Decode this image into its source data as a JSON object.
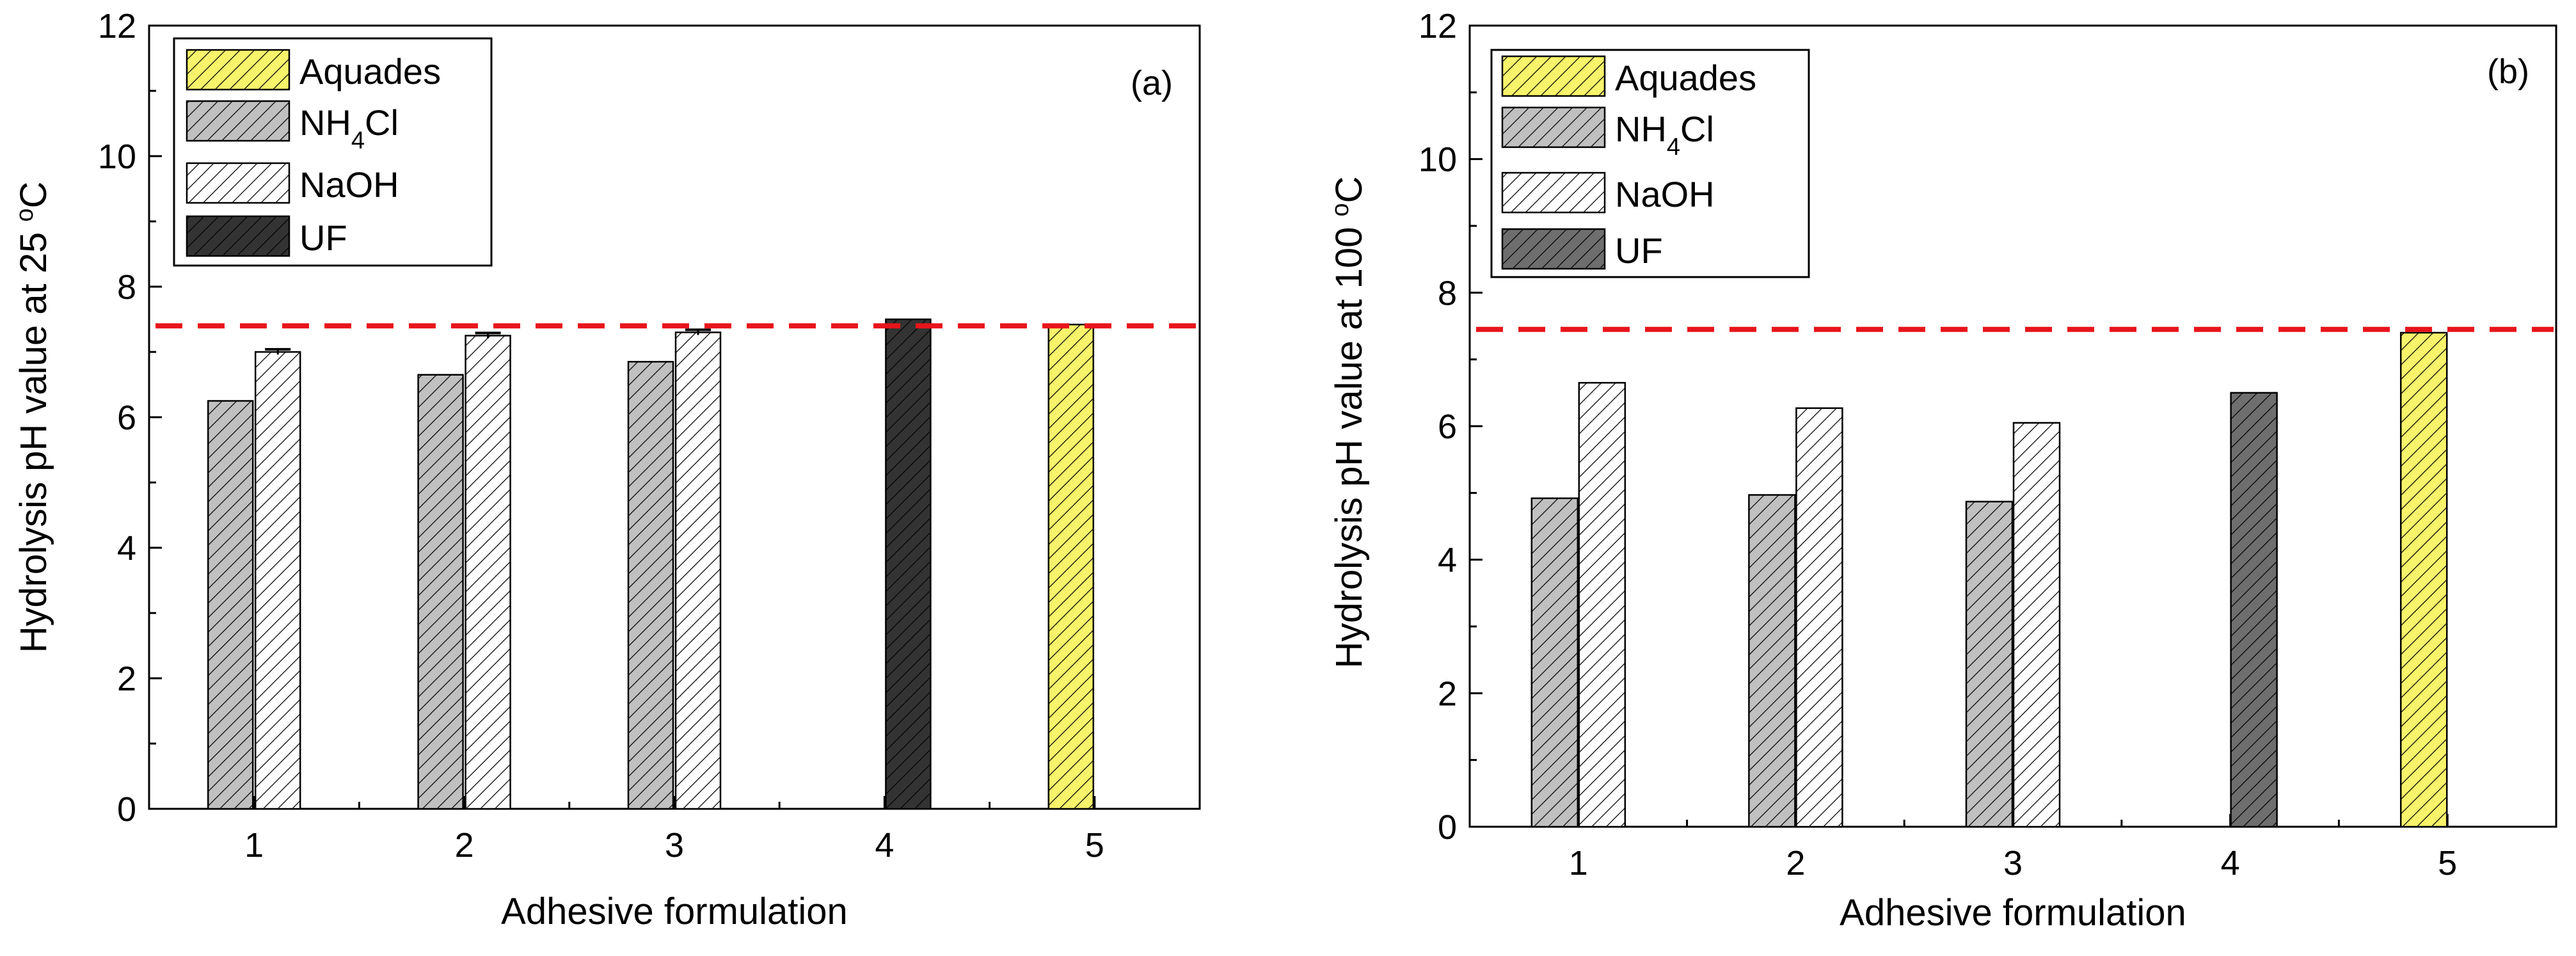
{
  "colors": {
    "aquades": "#f7f36a",
    "nh4cl": "#c0c0c0",
    "naoh": "#ffffff",
    "uf_a": "#333333",
    "uf_b": "#6e6e6e",
    "reference_line": "#e8141b"
  },
  "legend": {
    "aquades": "Aquades",
    "nh4cl_prefix": "NH",
    "nh4cl_subscript": "4",
    "nh4cl_suffix": "Cl",
    "naoh": "NaOH",
    "uf": "UF"
  },
  "xlabel": "Adhesive formulation",
  "chart_data": [
    {
      "type": "bar",
      "panel_label": "(a)",
      "title": "",
      "xlabel": "Adhesive formulation",
      "ylabel_prefix": "Hydrolysis pH value at 25 ",
      "ylabel_superscript": "o",
      "ylabel_suffix": "C",
      "categories": [
        "1",
        "2",
        "3",
        "4",
        "5"
      ],
      "xlim": [
        0.5,
        5.5
      ],
      "ylim": [
        0,
        12
      ],
      "yticks": [
        "0",
        "2",
        "4",
        "6",
        "8",
        "10",
        "12"
      ],
      "reference_line": 7.4,
      "series": [
        {
          "name": "NH4Cl",
          "key": "nh4cl",
          "values": [
            6.25,
            6.65,
            6.85,
            null,
            null
          ],
          "errors": [
            0,
            0,
            0,
            null,
            null
          ]
        },
        {
          "name": "NaOH",
          "key": "naoh",
          "values": [
            7.0,
            7.25,
            7.3,
            null,
            null
          ],
          "errors": [
            0.04,
            0.04,
            0.04,
            null,
            null
          ]
        },
        {
          "name": "UF",
          "key": "uf",
          "values": [
            null,
            null,
            null,
            7.5,
            null
          ],
          "errors": [
            null,
            null,
            null,
            0,
            null
          ]
        },
        {
          "name": "Aquades",
          "key": "aquades",
          "values": [
            null,
            null,
            null,
            null,
            7.42
          ],
          "errors": [
            null,
            null,
            null,
            null,
            0
          ]
        }
      ]
    },
    {
      "type": "bar",
      "panel_label": "(b)",
      "title": "",
      "xlabel": "Adhesive formulation",
      "ylabel_prefix": "Hydrolysis pH value at 100 ",
      "ylabel_superscript": "o",
      "ylabel_suffix": "C",
      "categories": [
        "1",
        "2",
        "3",
        "4",
        "5"
      ],
      "xlim": [
        0.5,
        5.5
      ],
      "ylim": [
        0,
        12
      ],
      "yticks": [
        "0",
        "2",
        "4",
        "6",
        "8",
        "10",
        "12"
      ],
      "reference_line": 7.45,
      "series": [
        {
          "name": "NH4Cl",
          "key": "nh4cl",
          "values": [
            4.92,
            4.97,
            4.87,
            null,
            null
          ],
          "errors": [
            0,
            0,
            0,
            null,
            null
          ]
        },
        {
          "name": "NaOH",
          "key": "naoh",
          "values": [
            6.65,
            6.27,
            6.05,
            null,
            null
          ],
          "errors": [
            0,
            0,
            0,
            null,
            null
          ]
        },
        {
          "name": "UF",
          "key": "uf",
          "values": [
            null,
            null,
            null,
            6.5,
            null
          ],
          "errors": [
            null,
            null,
            null,
            0,
            null
          ]
        },
        {
          "name": "Aquades",
          "key": "aquades",
          "values": [
            null,
            null,
            null,
            null,
            7.4
          ],
          "errors": [
            null,
            null,
            null,
            null,
            0
          ]
        }
      ]
    }
  ]
}
